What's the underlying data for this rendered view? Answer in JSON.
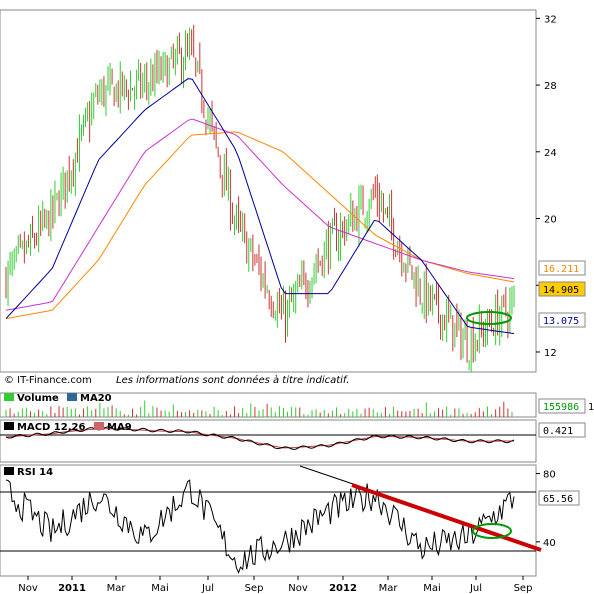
{
  "credit": "© IT-Finance.com",
  "disclaimer": "Les informations sont données à titre indicatif.",
  "colors": {
    "up": "#33cc33",
    "down": "#cc3333",
    "ma_blue": "#000099",
    "ma_magenta": "#cc33cc",
    "ma_orange": "#ff8800",
    "trend_red": "#cc0000",
    "ellipse_green": "#009900",
    "price_box_bg": "#ffcc00"
  },
  "legend": {
    "volume": "Volume",
    "ma20": "MA20",
    "macd": "MACD 12,26",
    "ma9": "MA9",
    "rsi": "RSI 14"
  },
  "readouts": {
    "ma_orange": "16.211",
    "price": "14.905",
    "ma20": "13.075",
    "volume": "155986",
    "volume_suffix": "1",
    "macd": "0.421",
    "rsi": "65.56"
  },
  "chart_data": [
    {
      "type": "line",
      "name": "price",
      "y_ticks": [
        12,
        16,
        20,
        24,
        28,
        32
      ],
      "y_tick_labels": [
        "12",
        "",
        "20",
        "24",
        "28",
        "32"
      ],
      "ylim": [
        10.8,
        32.5
      ],
      "x_ticks": [
        "Nov",
        "2011",
        "Mar",
        "Mai",
        "Jul",
        "Sep",
        "Nov",
        "2012",
        "Mar",
        "Mai",
        "Jul",
        "Sep"
      ],
      "x": [
        "2010-10",
        "2010-12",
        "2011-02",
        "2011-04",
        "2011-06",
        "2011-08",
        "2011-10",
        "2011-12",
        "2012-02",
        "2012-04",
        "2012-06",
        "2012-08"
      ],
      "series": [
        {
          "values": [
            16.5,
            20.2,
            27.5,
            28.0,
            30.0,
            19.5,
            14.0,
            18.5,
            21.5,
            15.5,
            12.5,
            14.9
          ]
        },
        {
          "values": [
            14.0,
            17.0,
            23.5,
            26.5,
            28.5,
            24.0,
            15.5,
            15.5,
            20.0,
            17.5,
            13.5,
            13.1
          ]
        },
        {
          "values": [
            14.5,
            15.0,
            19.5,
            24.0,
            26.0,
            25.0,
            22.0,
            19.5,
            18.5,
            17.5,
            16.8,
            16.4
          ]
        },
        {
          "values": [
            14.0,
            14.5,
            17.5,
            22.0,
            25.0,
            25.2,
            24.0,
            21.5,
            19.0,
            17.5,
            16.7,
            16.2
          ]
        }
      ]
    },
    {
      "type": "line",
      "name": "rsi",
      "y_ticks": [
        40,
        80
      ],
      "ylim": [
        20,
        85
      ],
      "x": [
        "2010-10",
        "2010-12",
        "2011-02",
        "2011-04",
        "2011-06",
        "2011-08",
        "2011-10",
        "2011-12",
        "2012-02",
        "2012-04",
        "2012-06",
        "2012-08"
      ],
      "series": [
        {
          "values": [
            70,
            45,
            68,
            42,
            72,
            28,
            40,
            58,
            68,
            36,
            42,
            65.56
          ]
        }
      ]
    }
  ]
}
